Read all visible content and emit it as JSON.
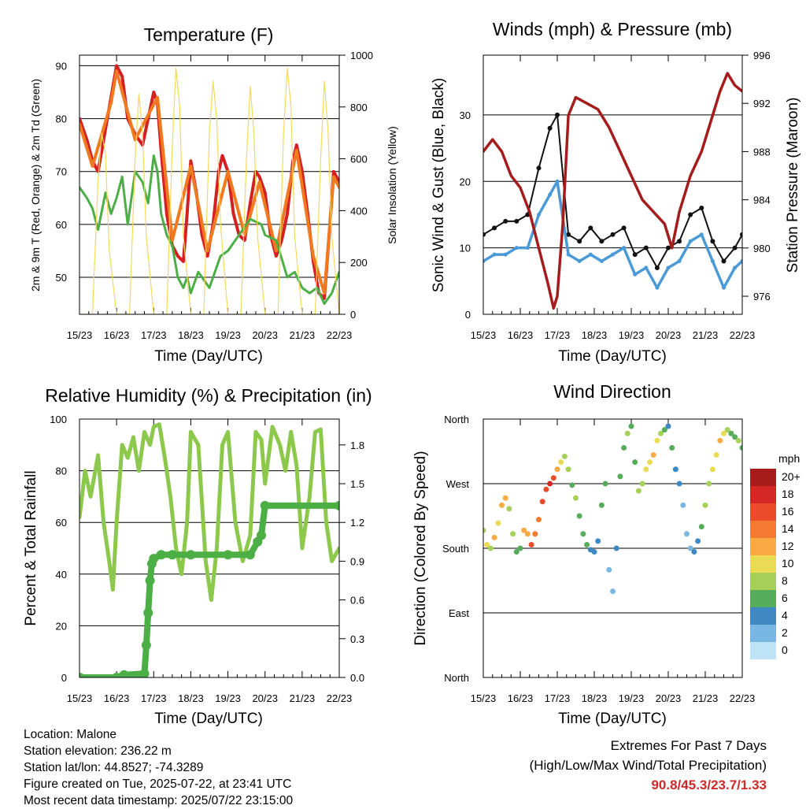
{
  "chart_data": [
    {
      "type": "line",
      "title": "Temperature (F)",
      "xlabel": "Time (Day/UTC)",
      "ylabel": "2m & 9m T (Red, Orange) & 2m Td (Green)",
      "ylabel_right": "Solar Insolation (Yellow)",
      "x_ticks": [
        "15/23",
        "16/23",
        "17/23",
        "18/23",
        "19/23",
        "20/23",
        "21/23",
        "22/23"
      ],
      "ylim": [
        43,
        92
      ],
      "y_ticks": [
        50,
        60,
        70,
        80,
        90
      ],
      "ylim_right": [
        0,
        1000
      ],
      "y_ticks_right": [
        0,
        200,
        400,
        600,
        800,
        1000
      ],
      "grid": "horizontal",
      "series": [
        {
          "name": "2m T",
          "color": "#d42020",
          "axis": "left",
          "x": [
            0,
            0.2,
            0.35,
            0.5,
            0.7,
            0.85,
            1.0,
            1.15,
            1.3,
            1.5,
            1.7,
            1.85,
            2.0,
            2.1,
            2.2,
            2.35,
            2.5,
            2.65,
            2.8,
            2.9,
            3.0,
            3.15,
            3.3,
            3.45,
            3.6,
            3.75,
            3.85,
            4.0,
            4.15,
            4.3,
            4.45,
            4.6,
            4.75,
            4.85,
            5.0,
            5.15,
            5.3,
            5.45,
            5.6,
            5.75,
            5.85,
            6.0,
            6.15,
            6.3,
            6.45,
            6.6,
            6.75,
            6.85,
            7.0
          ],
          "values": [
            80,
            76,
            72,
            70,
            78,
            84,
            90,
            88,
            80,
            77,
            75,
            80,
            85,
            83,
            74,
            62,
            56,
            54,
            53,
            62,
            72,
            66,
            58,
            54,
            60,
            70,
            73,
            70,
            62,
            58,
            57,
            64,
            70,
            69,
            66,
            58,
            54,
            57,
            62,
            72,
            75,
            70,
            62,
            53,
            47,
            46,
            60,
            70,
            68
          ]
        },
        {
          "name": "9m T",
          "color": "#f07a20",
          "axis": "left",
          "x": [
            0,
            0.35,
            0.85,
            1.0,
            1.5,
            2.1,
            2.5,
            3.0,
            3.45,
            4.0,
            4.45,
            4.85,
            5.3,
            5.85,
            6.3,
            6.6,
            6.85,
            7.0
          ],
          "values": [
            79,
            71,
            83,
            89,
            76,
            84,
            57,
            71,
            55,
            70,
            58,
            68,
            55,
            74,
            54,
            47,
            69,
            67
          ]
        },
        {
          "name": "2m Td",
          "color": "#4caf45",
          "axis": "left",
          "x": [
            0,
            0.2,
            0.35,
            0.5,
            0.7,
            0.85,
            1.0,
            1.15,
            1.3,
            1.5,
            1.7,
            1.85,
            2.0,
            2.1,
            2.2,
            2.35,
            2.5,
            2.65,
            2.8,
            2.9,
            3.0,
            3.2,
            3.5,
            3.8,
            4.0,
            4.3,
            4.6,
            4.9,
            5.0,
            5.3,
            5.6,
            5.8,
            6.0,
            6.2,
            6.4,
            6.6,
            6.8,
            7.0
          ],
          "values": [
            67,
            65,
            63,
            59,
            66,
            62,
            65,
            69,
            60,
            70,
            68,
            64,
            73,
            70,
            62,
            58,
            56,
            50,
            48,
            50,
            47,
            51,
            48,
            54,
            55,
            58,
            61,
            60,
            58,
            57,
            50,
            51,
            48,
            47,
            48,
            45,
            47,
            51
          ]
        },
        {
          "name": "Solar Insolation",
          "color": "#f5d95a",
          "axis": "right",
          "x": [
            0,
            0.35,
            0.5,
            0.6,
            0.7,
            0.8,
            1.0,
            1.35,
            1.5,
            1.6,
            1.7,
            1.8,
            2.0,
            2.35,
            2.5,
            2.6,
            2.7,
            2.8,
            3.0,
            3.35,
            3.5,
            3.6,
            3.7,
            3.8,
            4.0,
            4.35,
            4.5,
            4.6,
            4.7,
            4.8,
            5.0,
            5.35,
            5.5,
            5.6,
            5.7,
            5.8,
            6.0,
            6.35,
            6.5,
            6.6,
            6.7,
            6.8,
            7.0
          ],
          "values": [
            0,
            0,
            520,
            700,
            620,
            250,
            0,
            0,
            600,
            850,
            700,
            300,
            0,
            0,
            650,
            950,
            800,
            300,
            0,
            0,
            700,
            900,
            750,
            350,
            0,
            0,
            600,
            880,
            700,
            300,
            0,
            0,
            700,
            950,
            800,
            300,
            0,
            0,
            600,
            900,
            700,
            300,
            0
          ]
        }
      ]
    },
    {
      "type": "scatter",
      "title": "Winds (mph) & Pressure (mb)",
      "xlabel": "Time (Day/UTC)",
      "ylabel": "Sonic Wind & Gust (Blue, Black)",
      "ylabel_right": "Station Pressure (Maroon)",
      "x_ticks": [
        "15/23",
        "16/23",
        "17/23",
        "18/23",
        "19/23",
        "20/23",
        "21/23",
        "22/23"
      ],
      "ylim": [
        0,
        39
      ],
      "y_ticks": [
        0,
        10,
        20,
        30
      ],
      "ylim_right": [
        974.5,
        996
      ],
      "y_ticks_right": [
        976,
        980,
        984,
        988,
        992,
        996
      ],
      "grid": "horizontal",
      "series": [
        {
          "name": "Sonic Wind",
          "color": "#4a9ad8",
          "axis": "left",
          "x": [
            0,
            0.3,
            0.6,
            0.9,
            1.2,
            1.5,
            1.8,
            2.0,
            2.3,
            2.6,
            2.9,
            3.2,
            3.5,
            3.8,
            4.1,
            4.4,
            4.7,
            5.0,
            5.3,
            5.6,
            5.9,
            6.2,
            6.5,
            6.8,
            7.0
          ],
          "values": [
            8,
            9,
            9,
            10,
            10,
            15,
            18,
            20,
            9,
            8,
            9,
            8,
            9,
            10,
            6,
            7,
            4,
            7,
            8,
            11,
            12,
            8,
            4,
            7,
            8
          ]
        },
        {
          "name": "Gust",
          "color": "#111111",
          "axis": "left",
          "x": [
            0,
            0.3,
            0.6,
            0.9,
            1.2,
            1.5,
            1.8,
            2.0,
            2.3,
            2.6,
            2.9,
            3.2,
            3.5,
            3.8,
            4.1,
            4.4,
            4.7,
            5.0,
            5.3,
            5.6,
            5.9,
            6.2,
            6.5,
            6.8,
            7.0
          ],
          "values": [
            12,
            13,
            14,
            14,
            15,
            22,
            28,
            30,
            12,
            11,
            13,
            11,
            12,
            13,
            9,
            10,
            7,
            10,
            11,
            15,
            16,
            11,
            8,
            10,
            12
          ]
        },
        {
          "name": "Station Pressure",
          "color": "#a51c1c",
          "axis": "right",
          "x": [
            0,
            0.25,
            0.5,
            0.75,
            1.0,
            1.25,
            1.5,
            1.75,
            1.9,
            2.0,
            2.15,
            2.3,
            2.5,
            2.8,
            3.1,
            3.4,
            3.7,
            4.0,
            4.3,
            4.6,
            4.9,
            5.1,
            5.3,
            5.6,
            5.9,
            6.1,
            6.4,
            6.6,
            6.8,
            7.0
          ],
          "values": [
            988,
            989,
            988,
            986,
            985,
            983,
            980,
            977,
            975,
            976,
            982,
            991,
            992.5,
            992,
            991.5,
            990,
            988,
            986,
            984,
            983,
            982,
            980,
            983,
            986,
            988,
            990,
            993,
            994.5,
            993.5,
            993
          ]
        }
      ]
    },
    {
      "type": "line",
      "title": "Relative Humidity (%) & Precipitation (in)",
      "xlabel": "Time (Day/UTC)",
      "ylabel": "Percent & Total Rainfall",
      "x_ticks": [
        "15/23",
        "16/23",
        "17/23",
        "18/23",
        "19/23",
        "20/23",
        "21/23",
        "22/23"
      ],
      "ylim": [
        0,
        100
      ],
      "y_ticks": [
        0,
        20,
        40,
        60,
        80,
        100
      ],
      "ylim_right": [
        0,
        2.0
      ],
      "y_ticks_right": [
        "0.0",
        "0.3",
        "0.6",
        "0.9",
        "1.2",
        "1.5",
        "1.8"
      ],
      "grid": "horizontal",
      "series": [
        {
          "name": "Relative Humidity",
          "color": "#8cc84b",
          "axis": "left",
          "x": [
            0,
            0.15,
            0.3,
            0.5,
            0.65,
            0.8,
            0.9,
            1.0,
            1.15,
            1.3,
            1.45,
            1.6,
            1.75,
            1.9,
            2.0,
            2.15,
            2.3,
            2.45,
            2.6,
            2.75,
            2.9,
            3.0,
            3.2,
            3.4,
            3.55,
            3.7,
            3.85,
            4.0,
            4.2,
            4.4,
            4.6,
            4.75,
            4.9,
            5.0,
            5.2,
            5.4,
            5.55,
            5.7,
            5.85,
            6.0,
            6.2,
            6.35,
            6.5,
            6.65,
            6.8,
            7.0
          ],
          "values": [
            62,
            80,
            70,
            86,
            60,
            45,
            34,
            60,
            90,
            85,
            93,
            80,
            95,
            90,
            97,
            98,
            85,
            70,
            50,
            40,
            60,
            95,
            90,
            45,
            30,
            50,
            90,
            95,
            60,
            45,
            55,
            95,
            92,
            75,
            97,
            90,
            80,
            95,
            82,
            50,
            70,
            95,
            96,
            60,
            45,
            50
          ]
        },
        {
          "name": "Total Rainfall",
          "color": "#4caf45",
          "axis": "right",
          "x": [
            0,
            1.0,
            1.2,
            1.75,
            1.8,
            1.85,
            1.9,
            1.95,
            2.0,
            2.2,
            2.5,
            3.0,
            4.0,
            4.6,
            4.8,
            4.9,
            5.0,
            7.0
          ],
          "values": [
            0.0,
            0.0,
            0.02,
            0.03,
            0.25,
            0.5,
            0.75,
            0.88,
            0.92,
            0.95,
            0.95,
            0.95,
            0.95,
            0.95,
            1.05,
            1.1,
            1.33,
            1.33
          ]
        }
      ]
    },
    {
      "type": "scatter",
      "title": "Wind Direction",
      "xlabel": "Time (Day/UTC)",
      "ylabel": "Direction (Colored By Speed)",
      "x_ticks": [
        "15/23",
        "16/23",
        "17/23",
        "18/23",
        "19/23",
        "20/23",
        "21/23",
        "22/23"
      ],
      "y_ticks": [
        "North",
        "East",
        "South",
        "West",
        "North"
      ],
      "ylim": [
        0,
        360
      ],
      "grid": "horizontal",
      "colorbar": {
        "title": "mph",
        "labels": [
          "20+",
          "18",
          "16",
          "14",
          "12",
          "10",
          "8",
          "6",
          "4",
          "2",
          "0"
        ],
        "colors": [
          "#a81b1b",
          "#d62727",
          "#ea4b28",
          "#f47a32",
          "#f9aa45",
          "#e9dc54",
          "#a6d058",
          "#55ad5b",
          "#3e88c4",
          "#78b7e3",
          "#bfe3f6"
        ]
      },
      "points": {
        "x": [
          0.0,
          0.1,
          0.2,
          0.3,
          0.4,
          0.5,
          0.6,
          0.7,
          0.8,
          0.9,
          1.0,
          1.1,
          1.2,
          1.3,
          1.4,
          1.5,
          1.6,
          1.7,
          1.8,
          1.9,
          2.0,
          2.1,
          2.2,
          2.3,
          2.4,
          2.5,
          2.6,
          2.7,
          2.8,
          2.9,
          3.0,
          3.1,
          3.2,
          3.3,
          3.4,
          3.5,
          3.6,
          3.7,
          3.8,
          3.9,
          4.0,
          4.1,
          4.2,
          4.3,
          4.4,
          4.5,
          4.6,
          4.7,
          4.8,
          4.9,
          5.0,
          5.1,
          5.2,
          5.3,
          5.4,
          5.5,
          5.6,
          5.7,
          5.8,
          5.9,
          6.0,
          6.1,
          6.2,
          6.3,
          6.4,
          6.5,
          6.6,
          6.7,
          6.8,
          6.9,
          7.0
        ],
        "direction": [
          205,
          185,
          180,
          195,
          215,
          240,
          250,
          235,
          200,
          175,
          180,
          205,
          200,
          185,
          200,
          220,
          245,
          262,
          270,
          278,
          290,
          300,
          308,
          290,
          268,
          250,
          225,
          200,
          185,
          178,
          175,
          190,
          240,
          270,
          150,
          120,
          180,
          280,
          320,
          340,
          350,
          300,
          260,
          270,
          290,
          300,
          310,
          330,
          340,
          345,
          350,
          320,
          290,
          270,
          240,
          200,
          180,
          175,
          190,
          210,
          240,
          270,
          290,
          310,
          330,
          340,
          345,
          340,
          335,
          330,
          320
        ],
        "speed": [
          9,
          10,
          8,
          12,
          11,
          12,
          13,
          9,
          8,
          6,
          7,
          12,
          13,
          16,
          15,
          15,
          16,
          17,
          18,
          17,
          12,
          10,
          9,
          8,
          7,
          8,
          7,
          6,
          6,
          5,
          4,
          5,
          6,
          7,
          3,
          2,
          5,
          6,
          7,
          8,
          7,
          6,
          8,
          9,
          10,
          11,
          12,
          10,
          8,
          6,
          5,
          6,
          5,
          4,
          3,
          2,
          3,
          4,
          5,
          7,
          8,
          9,
          10,
          11,
          12,
          10,
          8,
          7,
          6,
          8,
          7
        ]
      }
    }
  ],
  "station_info": {
    "location": "Location: Malone",
    "elevation": "Station elevation: 236.22 m",
    "latlon": "Station lat/lon: 44.8527; -74.3289",
    "created": "Figure created on Tue, 2025-07-22, at 23:41 UTC",
    "latest": "Most recent data timestamp: 2025/07/22 23:15:00"
  },
  "extremes": {
    "title": "Extremes For Past 7 Days",
    "subtitle": "(High/Low/Max Wind/Total Precipitation)",
    "values": "90.8/45.3/23.7/1.33"
  }
}
